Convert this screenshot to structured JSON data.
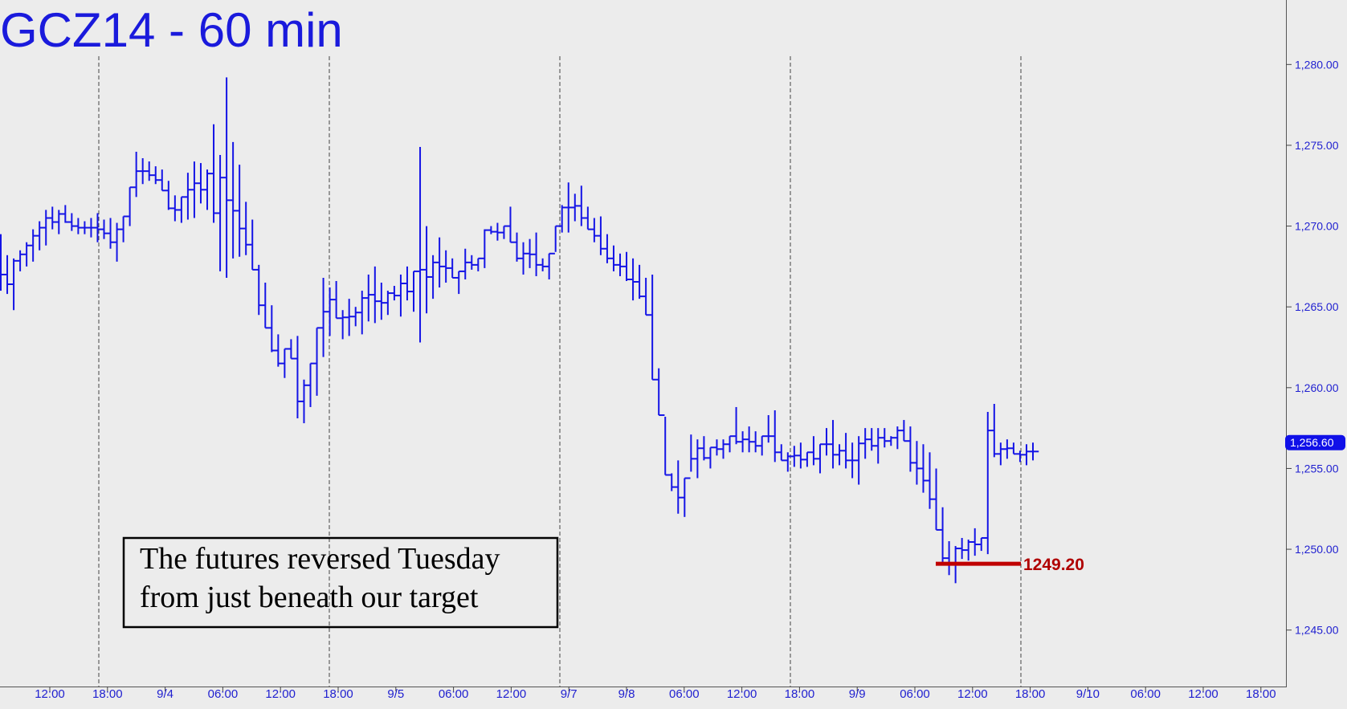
{
  "chart_data": {
    "type": "ohlc",
    "title": "GCZ14 - 60 min",
    "ylim": [
      1242.5,
      1282.5
    ],
    "y_ticks": [
      {
        "value": 1280,
        "label": "1,280.00"
      },
      {
        "value": 1275,
        "label": "1,275.00"
      },
      {
        "value": 1270,
        "label": "1,270.00"
      },
      {
        "value": 1265,
        "label": "1,265.00"
      },
      {
        "value": 1260,
        "label": "1,260.00"
      },
      {
        "value": 1255,
        "label": "1,255.00"
      },
      {
        "value": 1250,
        "label": "1,250.00"
      },
      {
        "value": 1245,
        "label": "1,245.00"
      }
    ],
    "x_ticks": [
      "12:00",
      "18:00",
      "9/4",
      "06:00",
      "12:00",
      "18:00",
      "9/5",
      "06:00",
      "12:00",
      "9/7",
      "9/8",
      "06:00",
      "12:00",
      "18:00",
      "9/9",
      "06:00",
      "12:00",
      "18:00",
      "9/10",
      "06:00",
      "12:00",
      "18:00"
    ],
    "current_price": {
      "value": 1256.6,
      "label": "1,256.60"
    },
    "target": {
      "value": 1249.2,
      "label": "1249.20"
    },
    "annotation": [
      "The futures reversed Tuesday",
      "from just beneath our target"
    ],
    "bars": [
      [
        1269.5,
        1266.0
      ],
      [
        1268.2,
        1265.8
      ],
      [
        1268.0,
        1264.8
      ],
      [
        1268.5,
        1267.2
      ],
      [
        1269.0,
        1267.5
      ],
      [
        1269.8,
        1267.8
      ],
      [
        1270.3,
        1268.5
      ],
      [
        1271.0,
        1268.8
      ],
      [
        1271.2,
        1269.8
      ],
      [
        1271.0,
        1269.5
      ],
      [
        1271.3,
        1270.2
      ],
      [
        1270.8,
        1269.7
      ],
      [
        1270.5,
        1269.5
      ],
      [
        1270.3,
        1269.5
      ],
      [
        1270.5,
        1269.3
      ],
      [
        1270.8,
        1269.0
      ],
      [
        1270.4,
        1269.2
      ],
      [
        1270.5,
        1268.6
      ],
      [
        1270.2,
        1267.8
      ],
      [
        1270.6,
        1269.0
      ],
      [
        1272.4,
        1270.0
      ],
      [
        1274.6,
        1271.8
      ],
      [
        1274.2,
        1272.6
      ],
      [
        1274.0,
        1272.8
      ],
      [
        1273.7,
        1272.6
      ],
      [
        1273.5,
        1272.2
      ],
      [
        1272.8,
        1271.0
      ],
      [
        1271.9,
        1270.3
      ],
      [
        1271.8,
        1270.2
      ],
      [
        1273.3,
        1270.4
      ],
      [
        1274.0,
        1270.5
      ],
      [
        1273.9,
        1271.4
      ],
      [
        1273.5,
        1271.0
      ],
      [
        1276.3,
        1270.2
      ],
      [
        1274.4,
        1267.2
      ],
      [
        1279.2,
        1266.8
      ],
      [
        1275.2,
        1268.0
      ],
      [
        1273.8,
        1268.1
      ],
      [
        1271.5,
        1268.2
      ],
      [
        1270.4,
        1267.3
      ],
      [
        1267.6,
        1264.5
      ],
      [
        1266.5,
        1263.7
      ],
      [
        1265.1,
        1262.2
      ],
      [
        1263.3,
        1261.3
      ],
      [
        1262.4,
        1260.6
      ],
      [
        1263.0,
        1261.8
      ],
      [
        1263.2,
        1258.1
      ],
      [
        1260.5,
        1257.8
      ],
      [
        1261.5,
        1258.8
      ],
      [
        1263.7,
        1259.5
      ],
      [
        1266.8,
        1261.9
      ],
      [
        1266.2,
        1263.2
      ],
      [
        1266.6,
        1264.3
      ],
      [
        1264.8,
        1263.0
      ],
      [
        1265.5,
        1263.2
      ],
      [
        1265.0,
        1263.8
      ],
      [
        1266.0,
        1263.3
      ],
      [
        1267.0,
        1264.1
      ],
      [
        1267.5,
        1264.0
      ],
      [
        1266.5,
        1264.2
      ],
      [
        1266.0,
        1264.5
      ],
      [
        1266.3,
        1265.4
      ],
      [
        1267.0,
        1264.4
      ],
      [
        1267.5,
        1265.4
      ],
      [
        1267.2,
        1264.7
      ],
      [
        1274.9,
        1262.8
      ],
      [
        1270.0,
        1264.6
      ],
      [
        1268.2,
        1265.5
      ],
      [
        1269.3,
        1266.2
      ],
      [
        1268.5,
        1266.5
      ],
      [
        1268.0,
        1266.8
      ],
      [
        1267.2,
        1265.8
      ],
      [
        1268.6,
        1266.7
      ],
      [
        1268.2,
        1267.3
      ],
      [
        1268.0,
        1267.2
      ],
      [
        1269.8,
        1267.4
      ],
      [
        1270.0,
        1269.5
      ],
      [
        1270.2,
        1269.1
      ],
      [
        1270.0,
        1269.2
      ],
      [
        1271.2,
        1269.0
      ],
      [
        1269.6,
        1267.8
      ],
      [
        1269.0,
        1267.0
      ],
      [
        1269.2,
        1267.4
      ],
      [
        1269.6,
        1266.9
      ],
      [
        1268.0,
        1267.2
      ],
      [
        1268.3,
        1266.7
      ],
      [
        1270.0,
        1268.4
      ],
      [
        1271.3,
        1269.6
      ],
      [
        1272.7,
        1269.6
      ],
      [
        1272.0,
        1270.3
      ],
      [
        1272.5,
        1270.0
      ],
      [
        1271.2,
        1269.8
      ],
      [
        1270.5,
        1269.0
      ],
      [
        1270.6,
        1268.2
      ],
      [
        1269.5,
        1267.7
      ],
      [
        1268.8,
        1267.2
      ],
      [
        1268.3,
        1266.9
      ],
      [
        1268.4,
        1266.6
      ],
      [
        1268.0,
        1265.4
      ],
      [
        1267.6,
        1265.5
      ],
      [
        1266.8,
        1264.5
      ],
      [
        1267.0,
        1260.5
      ],
      [
        1261.2,
        1258.3
      ],
      [
        1258.2,
        1254.6
      ],
      [
        1254.7,
        1253.6
      ],
      [
        1255.5,
        1252.2
      ],
      [
        1254.4,
        1252.0
      ],
      [
        1257.1,
        1254.8
      ],
      [
        1256.8,
        1254.4
      ],
      [
        1257.0,
        1255.5
      ],
      [
        1256.3,
        1255.0
      ],
      [
        1256.8,
        1255.8
      ],
      [
        1256.8,
        1255.6
      ],
      [
        1257.0,
        1256.0
      ],
      [
        1258.8,
        1256.5
      ],
      [
        1257.3,
        1256.0
      ],
      [
        1257.6,
        1256.0
      ],
      [
        1257.3,
        1256.0
      ],
      [
        1257.0,
        1255.8
      ],
      [
        1258.3,
        1256.6
      ],
      [
        1258.6,
        1255.4
      ],
      [
        1256.5,
        1255.5
      ],
      [
        1256.0,
        1254.8
      ],
      [
        1256.4,
        1255.1
      ],
      [
        1256.6,
        1255.0
      ],
      [
        1256.0,
        1255.1
      ],
      [
        1257.0,
        1255.2
      ],
      [
        1256.5,
        1254.7
      ],
      [
        1257.5,
        1255.8
      ],
      [
        1258.0,
        1255.0
      ],
      [
        1256.5,
        1255.2
      ],
      [
        1257.2,
        1255.0
      ],
      [
        1256.6,
        1254.4
      ],
      [
        1257.0,
        1254.0
      ],
      [
        1257.5,
        1255.6
      ],
      [
        1257.5,
        1256.1
      ],
      [
        1257.5,
        1255.3
      ],
      [
        1257.5,
        1256.3
      ],
      [
        1257.0,
        1256.4
      ],
      [
        1257.6,
        1256.2
      ],
      [
        1258.0,
        1256.7
      ],
      [
        1257.6,
        1254.8
      ],
      [
        1256.7,
        1254.0
      ],
      [
        1256.5,
        1253.5
      ],
      [
        1256.0,
        1252.5
      ],
      [
        1255.0,
        1251.2
      ],
      [
        1252.6,
        1249.2
      ],
      [
        1250.5,
        1248.4
      ],
      [
        1250.2,
        1247.9
      ],
      [
        1250.7,
        1249.4
      ],
      [
        1250.6,
        1249.3
      ],
      [
        1251.3,
        1249.6
      ],
      [
        1250.7,
        1249.9
      ],
      [
        1258.5,
        1249.7
      ],
      [
        1259.0,
        1255.7
      ],
      [
        1256.6,
        1255.2
      ],
      [
        1256.8,
        1255.6
      ],
      [
        1256.6,
        1255.9
      ],
      [
        1256.1,
        1255.4
      ],
      [
        1256.5,
        1255.2
      ],
      [
        1256.6,
        1255.5
      ]
    ]
  }
}
